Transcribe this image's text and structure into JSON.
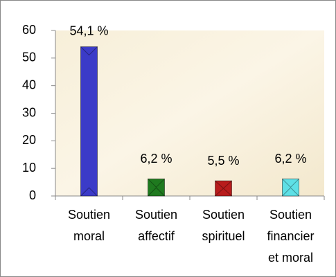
{
  "chart_data": {
    "type": "bar",
    "categories": [
      [
        "Soutien",
        "moral"
      ],
      [
        "Soutien",
        "affectif"
      ],
      [
        "Soutien",
        "spirituel"
      ],
      [
        "Soutien",
        "financier",
        "et moral"
      ]
    ],
    "values": [
      54.1,
      6.2,
      5.5,
      6.2
    ],
    "value_labels": [
      "54,1 %",
      "6,2 %",
      "5,5 %",
      "6,2 %"
    ],
    "colors": [
      "#3b3bc8",
      "#1f7a1f",
      "#b81c1c",
      "#5ee0e6"
    ],
    "ylim": [
      0,
      60
    ],
    "yticks": [
      0,
      10,
      20,
      30,
      40,
      50,
      60
    ]
  }
}
